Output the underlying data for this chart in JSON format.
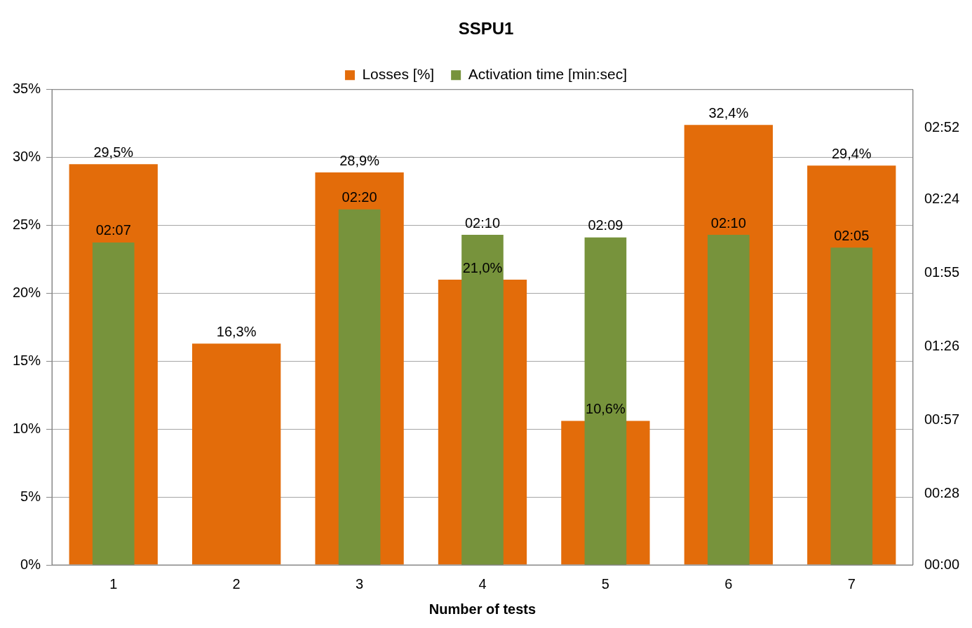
{
  "chart_data": {
    "type": "bar",
    "title": "SSPU1",
    "xlabel": "Number of tests",
    "categories": [
      "1",
      "2",
      "3",
      "4",
      "5",
      "6",
      "7"
    ],
    "series": [
      {
        "name": "Losses [%]",
        "color": "#e36c0a",
        "values": [
          29.5,
          16.3,
          28.9,
          21.0,
          10.6,
          32.4,
          29.4
        ],
        "value_labels": [
          "29,5%",
          "16,3%",
          "28,9%",
          "21,0%",
          "10,6%",
          "32,4%",
          "29,4%"
        ]
      },
      {
        "name": "Activation time [min:sec]",
        "color": "#77933c",
        "axis": "y2",
        "values": [
          127,
          null,
          140,
          130,
          129,
          130,
          125
        ],
        "value_labels": [
          "02:07",
          null,
          "02:20",
          "02:10",
          "02:09",
          "02:10",
          "02:05"
        ]
      }
    ],
    "ylim": [
      0,
      35
    ],
    "yticks": [
      {
        "value": 0,
        "label": "0%"
      },
      {
        "value": 5,
        "label": "5%"
      },
      {
        "value": 10,
        "label": "10%"
      },
      {
        "value": 15,
        "label": "15%"
      },
      {
        "value": 20,
        "label": "20%"
      },
      {
        "value": 25,
        "label": "25%"
      },
      {
        "value": 30,
        "label": "30%"
      },
      {
        "value": 35,
        "label": "35%"
      }
    ],
    "y2lim": [
      0,
      187.2
    ],
    "y2ticks": [
      {
        "value": 0,
        "label": "00:00"
      },
      {
        "value": 28,
        "label": "00:28"
      },
      {
        "value": 57,
        "label": "00:57"
      },
      {
        "value": 86,
        "label": "01:26"
      },
      {
        "value": 115,
        "label": "01:55"
      },
      {
        "value": 144,
        "label": "02:24"
      },
      {
        "value": 172,
        "label": "02:52"
      }
    ],
    "grid": "y",
    "legend": "top"
  }
}
